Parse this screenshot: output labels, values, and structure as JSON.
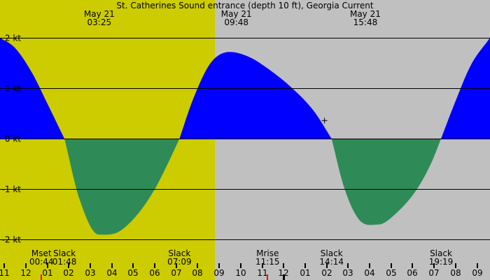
{
  "colors": {
    "night": "#c0c0c0",
    "day": "#cccc00",
    "flood": "#0000ff",
    "ebb": "#2e8b57",
    "moon_marker": "#ff0000"
  },
  "chart_data": {
    "type": "area",
    "title": "St. Catherines Sound entrance (depth 10 ft), Georgia Current",
    "xlabel": "",
    "ylabel": "",
    "x_unit": "hour of day",
    "x_range": [
      10.8,
      33.6
    ],
    "y_range": [
      -2.8,
      2.75
    ],
    "daylight": {
      "start": 6.5,
      "end": 20.8
    },
    "grid": true,
    "y_ticks": [
      {
        "value": 2,
        "label": "2 kt"
      },
      {
        "value": 1,
        "label": "1 kt"
      },
      {
        "value": 0,
        "label": "0 kt"
      },
      {
        "value": -1,
        "label": "-1 kt"
      },
      {
        "value": -2,
        "label": "-2 kt"
      }
    ],
    "x_ticks": [
      {
        "hour": 11,
        "label": "11"
      },
      {
        "hour": 12,
        "label": "12"
      },
      {
        "hour": 13,
        "label": "01"
      },
      {
        "hour": 14,
        "label": "02"
      },
      {
        "hour": 15,
        "label": "03"
      },
      {
        "hour": 16,
        "label": "04"
      },
      {
        "hour": 17,
        "label": "05"
      },
      {
        "hour": 18,
        "label": "06"
      },
      {
        "hour": 19,
        "label": "07"
      },
      {
        "hour": 20,
        "label": "08"
      },
      {
        "hour": 21,
        "label": "09"
      },
      {
        "hour": 22,
        "label": "10"
      },
      {
        "hour": 23,
        "label": "11"
      },
      {
        "hour": 24,
        "label": "12"
      },
      {
        "hour": 25,
        "label": "01"
      },
      {
        "hour": 26,
        "label": "02"
      },
      {
        "hour": 27,
        "label": "03"
      },
      {
        "hour": 28,
        "label": "04"
      },
      {
        "hour": 29,
        "label": "05"
      },
      {
        "hour": 30,
        "label": "06"
      },
      {
        "hour": 31,
        "label": "07"
      },
      {
        "hour": 32,
        "label": "08"
      },
      {
        "hour": 33,
        "label": "09"
      }
    ],
    "series": [
      {
        "name": "",
        "x": [
          10.8,
          11.5,
          12.3,
          13.0,
          13.8
        ],
        "y": [
          2.0,
          1.8,
          1.3,
          0.7,
          0.0
        ]
      },
      {
        "name": "",
        "x": [
          13.8,
          14.5,
          15.4,
          16.3,
          17.2,
          18.0,
          18.6,
          19.15
        ],
        "y": [
          0.0,
          -1.2,
          -1.9,
          -1.85,
          -1.5,
          -1.0,
          -0.5,
          0.0
        ]
      },
      {
        "name": "",
        "x": [
          19.15,
          19.8,
          20.6,
          21.5,
          22.4,
          23.3,
          24.4,
          25.4,
          26.23
        ],
        "y": [
          0.0,
          0.8,
          1.5,
          1.72,
          1.62,
          1.38,
          1.0,
          0.55,
          0.0
        ]
      },
      {
        "name": "",
        "x": [
          26.23,
          26.8,
          27.5,
          28.4,
          29.3,
          30.2,
          30.9,
          31.32
        ],
        "y": [
          0.0,
          -0.95,
          -1.6,
          -1.7,
          -1.45,
          -1.0,
          -0.45,
          0.0
        ]
      },
      {
        "name": "",
        "x": [
          31.32,
          32.0,
          32.7,
          33.6
        ],
        "y": [
          0.0,
          0.75,
          1.45,
          2.0
        ]
      }
    ],
    "top_annotations": [
      {
        "hour": 15.42,
        "date": "May 21",
        "time": "03:25"
      },
      {
        "hour": 21.8,
        "date": "May 21",
        "time": "09:48"
      },
      {
        "hour": 27.8,
        "date": "May 21",
        "time": "15:48"
      }
    ],
    "events": [
      {
        "hour": 12.73,
        "label": "Mset",
        "time": "00:44",
        "anchor": "middle"
      },
      {
        "hour": 13.8,
        "label": "Slack",
        "time": "01:48",
        "anchor": "middle"
      },
      {
        "hour": 19.15,
        "label": "Slack",
        "time": "07:09",
        "anchor": "middle"
      },
      {
        "hour": 23.25,
        "label": "Mrise",
        "time": "11:15",
        "anchor": "middle"
      },
      {
        "hour": 26.23,
        "label": "Slack",
        "time": "14:14",
        "anchor": "middle"
      },
      {
        "hour": 31.32,
        "label": "Slack",
        "time": "19:19",
        "anchor": "middle"
      }
    ],
    "current_marker": {
      "hour": 25.9,
      "value": 0.36
    }
  }
}
